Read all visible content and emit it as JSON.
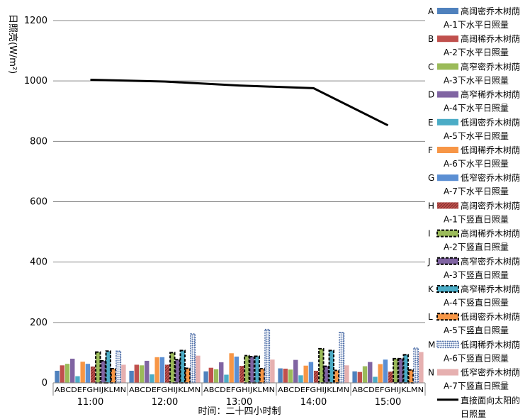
{
  "chart_data": {
    "type": "bar",
    "ylabel": "日照亮(W/m²)",
    "xlabel": "时间：二十四小时制",
    "ylim": [
      0,
      1200
    ],
    "yticks": [
      0,
      200,
      400,
      600,
      800,
      1000,
      1200
    ],
    "categories": [
      "11:00",
      "12:00",
      "13:00",
      "14:00",
      "15:00"
    ],
    "bar_letters": "ABCDEFGHIJKLMN",
    "grid": true,
    "legend_position": "right",
    "series": [
      {
        "letter": "A",
        "name_line1": "高阔密乔木树荫",
        "name_line2": "A-1下水平日照量",
        "color": "#4f81bd",
        "pattern": "solid",
        "values": [
          40,
          40,
          38,
          48,
          38
        ]
      },
      {
        "letter": "B",
        "name_line1": "高阔稀乔木树荫",
        "name_line2": "A-2下水平日照量",
        "color": "#c0504d",
        "pattern": "solid",
        "values": [
          58,
          60,
          50,
          47,
          36
        ]
      },
      {
        "letter": "C",
        "name_line1": "高窄密乔木树荫",
        "name_line2": "A-3下水平日照量",
        "color": "#9bbb59",
        "pattern": "solid",
        "values": [
          63,
          58,
          45,
          44,
          55
        ]
      },
      {
        "letter": "D",
        "name_line1": "高窄稀乔木树荫",
        "name_line2": "A-4下水平日照量",
        "color": "#8064a2",
        "pattern": "solid",
        "values": [
          80,
          73,
          68,
          76,
          69
        ]
      },
      {
        "letter": "E",
        "name_line1": "低阔密乔木树荫",
        "name_line2": "A-5下水平日照量",
        "color": "#4bacc6",
        "pattern": "solid",
        "values": [
          22,
          28,
          27,
          25,
          20
        ]
      },
      {
        "letter": "F",
        "name_line1": "低阔稀乔木树荫",
        "name_line2": "A-6下水平日照量",
        "color": "#f79646",
        "pattern": "solid",
        "values": [
          70,
          85,
          98,
          57,
          62
        ]
      },
      {
        "letter": "G",
        "name_line1": "低窄密乔木树荫",
        "name_line2": "A-7下水平日照量",
        "color": "#5b8fd3",
        "pattern": "solid",
        "values": [
          63,
          85,
          87,
          69,
          77
        ]
      },
      {
        "letter": "H",
        "name_line1": "高阔密乔木树荫",
        "name_line2": "A-1下竖直日照量",
        "color": "#c0504d",
        "pattern": "hatch",
        "values": [
          54,
          60,
          56,
          40,
          37
        ]
      },
      {
        "letter": "I",
        "name_line1": "高阔稀乔木树荫",
        "name_line2": "A-2下竖直日照量",
        "color": "#9bbb59",
        "pattern": "dashed",
        "values": [
          102,
          100,
          90,
          113,
          80
        ]
      },
      {
        "letter": "J",
        "name_line1": "高窄密乔木树荫",
        "name_line2": "A-3下竖直日照量",
        "color": "#8064a2",
        "pattern": "dashed",
        "values": [
          73,
          77,
          87,
          55,
          80
        ]
      },
      {
        "letter": "K",
        "name_line1": "高窄稀乔木树荫",
        "name_line2": "A-4下竖直日照量",
        "color": "#4bacc6",
        "pattern": "dashed",
        "values": [
          105,
          107,
          88,
          107,
          93
        ]
      },
      {
        "letter": "L",
        "name_line1": "低阔密乔木树荫",
        "name_line2": "A-5下竖直日照量",
        "color": "#f79646",
        "pattern": "dashed",
        "values": [
          47,
          48,
          47,
          41,
          43
        ]
      },
      {
        "letter": "M",
        "name_line1": "低阔稀乔木树荫",
        "name_line2": "A-6下竖直日照量",
        "color": "#9fb4d8",
        "pattern": "dotted",
        "values": [
          105,
          162,
          177,
          167,
          115
        ]
      },
      {
        "letter": "N",
        "name_line1": "低窄密乔木树荫",
        "name_line2": "A-7下竖直日照量",
        "color": "#e6b0b0",
        "pattern": "solid",
        "values": [
          60,
          90,
          77,
          58,
          102
        ]
      }
    ],
    "line_series": {
      "name_line1": "直接面向太阳的",
      "name_line2": "日照量",
      "color": "#000000",
      "values": [
        1004,
        998,
        985,
        976,
        853
      ]
    }
  }
}
